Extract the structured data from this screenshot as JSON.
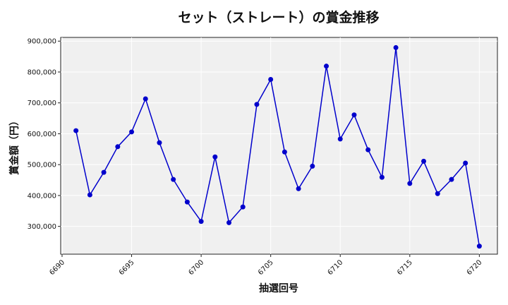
{
  "chart_data": {
    "type": "line",
    "title": "セット（ストレート）の賞金推移",
    "xlabel": "抽選回号",
    "ylabel": "賞金額（円）",
    "xlim": [
      6689.9,
      6721.3
    ],
    "ylim": [
      210000,
      912000
    ],
    "xticks": [
      6690,
      6695,
      6700,
      6705,
      6710,
      6715,
      6720
    ],
    "yticks": [
      300000,
      400000,
      500000,
      600000,
      700000,
      800000,
      900000
    ],
    "ytick_labels": [
      "300,000",
      "400,000",
      "500,000",
      "600,000",
      "700,000",
      "800,000",
      "900,000"
    ],
    "grid": true,
    "background": "#f0f0f0",
    "line_color": "#0000cc",
    "x": [
      6691,
      6692,
      6693,
      6694,
      6695,
      6696,
      6697,
      6698,
      6699,
      6700,
      6701,
      6702,
      6703,
      6704,
      6705,
      6706,
      6707,
      6708,
      6709,
      6710,
      6711,
      6712,
      6713,
      6714,
      6715,
      6716,
      6717,
      6718,
      6719,
      6720
    ],
    "values": [
      610000,
      402000,
      475000,
      558000,
      606000,
      713000,
      571000,
      452000,
      379000,
      316000,
      525000,
      312000,
      363000,
      695000,
      776000,
      541000,
      422000,
      495000,
      819000,
      583000,
      661000,
      548000,
      459000,
      879000,
      439000,
      511000,
      406000,
      452000,
      505000,
      236000
    ]
  }
}
